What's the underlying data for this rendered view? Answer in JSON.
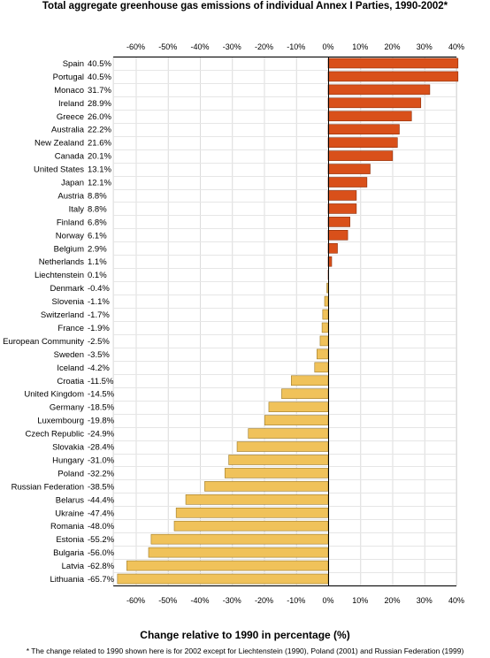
{
  "chart_data": {
    "type": "bar",
    "orientation": "horizontal",
    "title": "Total aggregate greenhouse gas emissions of individual Annex I Parties, 1990-2002*",
    "xlabel": "Change relative to 1990 in percentage (%)",
    "footnote": "* The change related to 1990 shown here is for 2002 except for Liechtenstein (1990), Poland (2001) and Russian Federation (1999)",
    "xlim": [
      -67,
      40
    ],
    "ticks": [
      -60,
      -50,
      -40,
      -30,
      -20,
      -10,
      0,
      10,
      20,
      30,
      40
    ],
    "tick_labels": [
      "-60%",
      "-50%",
      "-40%",
      "-30%",
      "-20%",
      "-10%",
      "0%",
      "10%",
      "20%",
      "30%",
      "40%"
    ],
    "grid": true,
    "positive_color": "#d9501a",
    "negative_color": "#f0c25a",
    "bars": [
      {
        "country": "Spain",
        "value": 40.5,
        "label": "40.5%"
      },
      {
        "country": "Portugal",
        "value": 40.5,
        "label": "40.5%"
      },
      {
        "country": "Monaco",
        "value": 31.7,
        "label": "31.7%"
      },
      {
        "country": "Ireland",
        "value": 28.9,
        "label": "28.9%"
      },
      {
        "country": "Greece",
        "value": 26.0,
        "label": "26.0%"
      },
      {
        "country": "Australia",
        "value": 22.2,
        "label": "22.2%"
      },
      {
        "country": "New Zealand",
        "value": 21.6,
        "label": "21.6%"
      },
      {
        "country": "Canada",
        "value": 20.1,
        "label": "20.1%"
      },
      {
        "country": "United States",
        "value": 13.1,
        "label": "13.1%"
      },
      {
        "country": "Japan",
        "value": 12.1,
        "label": "12.1%"
      },
      {
        "country": "Austria",
        "value": 8.8,
        "label": "8.8%"
      },
      {
        "country": "Italy",
        "value": 8.8,
        "label": "8.8%"
      },
      {
        "country": "Finland",
        "value": 6.8,
        "label": "6.8%"
      },
      {
        "country": "Norway",
        "value": 6.1,
        "label": "6.1%"
      },
      {
        "country": "Belgium",
        "value": 2.9,
        "label": "2.9%"
      },
      {
        "country": "Netherlands",
        "value": 1.1,
        "label": "1.1%"
      },
      {
        "country": "Liechtenstein",
        "value": 0.1,
        "label": "0.1%"
      },
      {
        "country": "Denmark",
        "value": -0.4,
        "label": "-0.4%"
      },
      {
        "country": "Slovenia",
        "value": -1.1,
        "label": "-1.1%"
      },
      {
        "country": "Switzerland",
        "value": -1.7,
        "label": "-1.7%"
      },
      {
        "country": "France",
        "value": -1.9,
        "label": "-1.9%"
      },
      {
        "country": "European Community",
        "value": -2.5,
        "label": "-2.5%"
      },
      {
        "country": "Sweden",
        "value": -3.5,
        "label": "-3.5%"
      },
      {
        "country": "Iceland",
        "value": -4.2,
        "label": "-4.2%"
      },
      {
        "country": "Croatia",
        "value": -11.5,
        "label": "-11.5%"
      },
      {
        "country": "United Kingdom",
        "value": -14.5,
        "label": "-14.5%"
      },
      {
        "country": "Germany",
        "value": -18.5,
        "label": "-18.5%"
      },
      {
        "country": "Luxembourg",
        "value": -19.8,
        "label": "-19.8%"
      },
      {
        "country": "Czech Republic",
        "value": -24.9,
        "label": "-24.9%"
      },
      {
        "country": "Slovakia",
        "value": -28.4,
        "label": "-28.4%"
      },
      {
        "country": "Hungary",
        "value": -31.0,
        "label": "-31.0%"
      },
      {
        "country": "Poland",
        "value": -32.2,
        "label": "-32.2%"
      },
      {
        "country": "Russian Federation",
        "value": -38.5,
        "label": "-38.5%"
      },
      {
        "country": "Belarus",
        "value": -44.4,
        "label": "-44.4%"
      },
      {
        "country": "Ukraine",
        "value": -47.4,
        "label": "-47.4%"
      },
      {
        "country": "Romania",
        "value": -48.0,
        "label": "-48.0%"
      },
      {
        "country": "Estonia",
        "value": -55.2,
        "label": "-55.2%"
      },
      {
        "country": "Bulgaria",
        "value": -56.0,
        "label": "-56.0%"
      },
      {
        "country": "Latvia",
        "value": -62.8,
        "label": "-62.8%"
      },
      {
        "country": "Lithuania",
        "value": -65.7,
        "label": "-65.7%"
      }
    ]
  }
}
